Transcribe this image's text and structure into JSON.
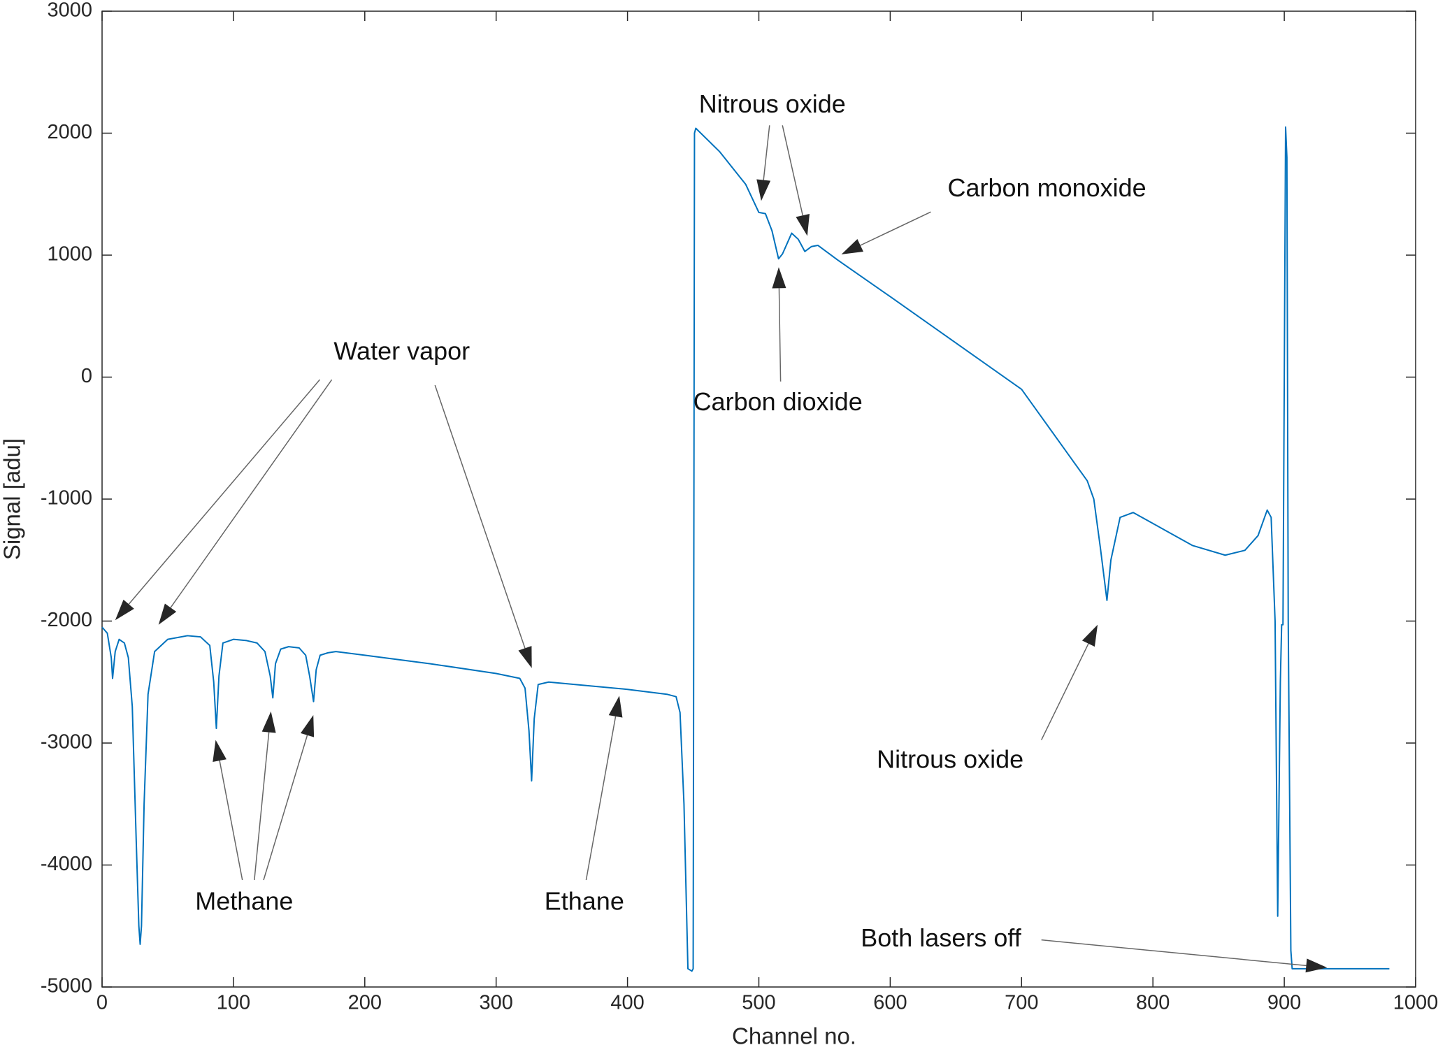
{
  "chart_data": {
    "type": "line",
    "xlabel": "Channel no.",
    "ylabel": "Signal [adu]",
    "xlim": [
      0,
      1000
    ],
    "ylim": [
      -5000,
      3000
    ],
    "xticks": [
      0,
      100,
      200,
      300,
      400,
      500,
      600,
      700,
      800,
      900,
      1000
    ],
    "yticks": [
      -5000,
      -4000,
      -3000,
      -2000,
      -1000,
      0,
      1000,
      2000,
      3000
    ],
    "grid": false,
    "series": [
      {
        "color": "#0072bd",
        "x": [
          0,
          4,
          7,
          8,
          10,
          13,
          17,
          20,
          23,
          26,
          28,
          29,
          30,
          32,
          35,
          40,
          50,
          65,
          75,
          82,
          85,
          87,
          89,
          92,
          100,
          110,
          118,
          124,
          128,
          130,
          132,
          136,
          142,
          150,
          155,
          158,
          161,
          163,
          166,
          172,
          178,
          200,
          250,
          300,
          318,
          322,
          325,
          327,
          329,
          332,
          340,
          400,
          430,
          437,
          440,
          443,
          446,
          449,
          450,
          451,
          452,
          470,
          490,
          500,
          505,
          510,
          515,
          518,
          525,
          530,
          535,
          540,
          545,
          560,
          600,
          700,
          740,
          750,
          755,
          760,
          765,
          768,
          775,
          785,
          800,
          830,
          855,
          870,
          880,
          887,
          890,
          893,
          895,
          897,
          898,
          899,
          900,
          901,
          902,
          903,
          905,
          906,
          910,
          980
        ],
        "values": [
          -2050,
          -2100,
          -2300,
          -2470,
          -2250,
          -2150,
          -2180,
          -2300,
          -2700,
          -3800,
          -4500,
          -4650,
          -4500,
          -3500,
          -2600,
          -2250,
          -2150,
          -2120,
          -2130,
          -2200,
          -2500,
          -2880,
          -2450,
          -2180,
          -2150,
          -2160,
          -2180,
          -2250,
          -2450,
          -2630,
          -2350,
          -2230,
          -2210,
          -2220,
          -2280,
          -2450,
          -2660,
          -2400,
          -2280,
          -2260,
          -2250,
          -2280,
          -2350,
          -2430,
          -2470,
          -2550,
          -2900,
          -3310,
          -2800,
          -2520,
          -2500,
          -2560,
          -2600,
          -2620,
          -2750,
          -3500,
          -4850,
          -4870,
          -4850,
          2000,
          2040,
          1850,
          1580,
          1350,
          1340,
          1200,
          970,
          1010,
          1180,
          1130,
          1030,
          1070,
          1080,
          960,
          660,
          -100,
          -700,
          -850,
          -1000,
          -1400,
          -1830,
          -1500,
          -1150,
          -1110,
          -1200,
          -1380,
          -1460,
          -1420,
          -1300,
          -1090,
          -1150,
          -2000,
          -4420,
          -2500,
          -2030,
          -2030,
          0,
          2050,
          1800,
          -2000,
          -4700,
          -4850,
          -4850,
          -4850
        ]
      }
    ],
    "annotations": [
      "Water vapor",
      "Nitrous oxide",
      "Carbon monoxide",
      "Carbon dioxide",
      "Methane",
      "Ethane",
      "Nitrous oxide",
      "Both lasers off"
    ]
  }
}
